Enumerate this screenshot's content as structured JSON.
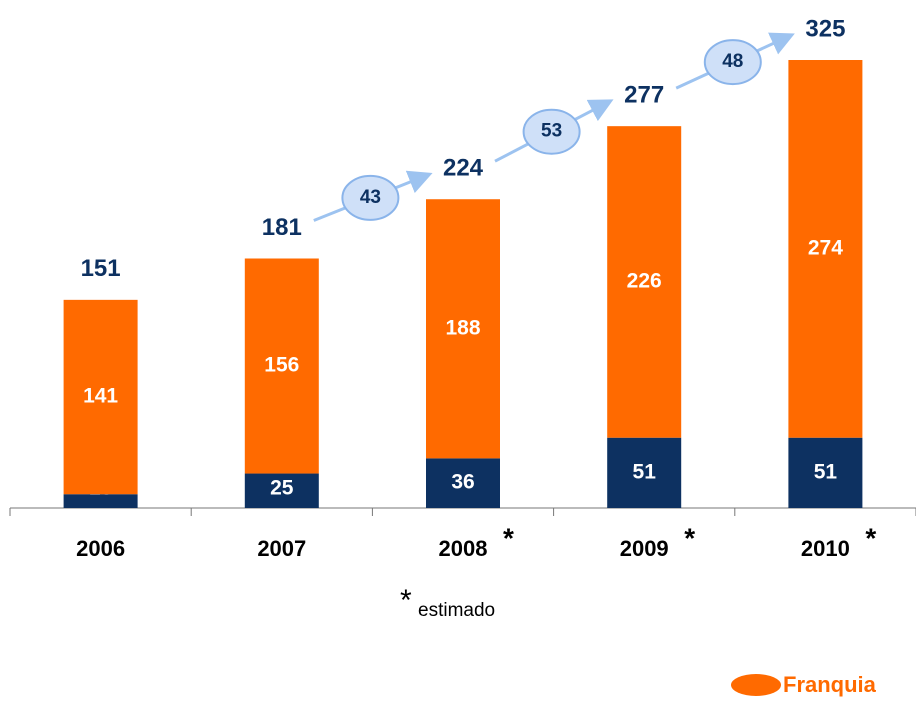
{
  "chart_data": {
    "type": "stacked_bar",
    "categories": [
      "2006",
      "2007",
      "2008",
      "2009",
      "2010"
    ],
    "category_marks": [
      null,
      null,
      "*",
      "*",
      "*"
    ],
    "series": [
      {
        "color": "#0d3161",
        "values": [
          10,
          25,
          36,
          51,
          51
        ]
      },
      {
        "name": "Franquia",
        "color": "#ff6a00",
        "values": [
          141,
          156,
          188,
          226,
          274
        ]
      }
    ],
    "totals": [
      151,
      181,
      224,
      277,
      325
    ],
    "growth": {
      "values": [
        43,
        53,
        48
      ],
      "color": "#9dc3f0",
      "fill": "#cfe0f8"
    },
    "footnote": {
      "mark": "*",
      "text": "estimado"
    },
    "legend": "bottom-right"
  }
}
